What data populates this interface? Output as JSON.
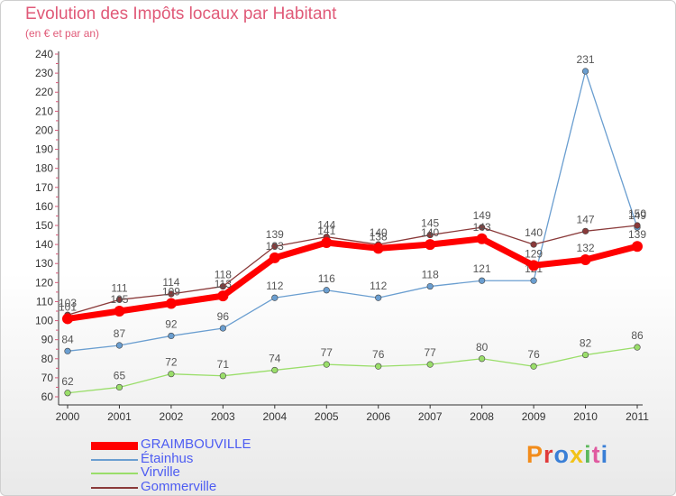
{
  "header": {
    "title": "Evolution des Impôts locaux par Habitant",
    "subtitle": "(en € et par an)"
  },
  "logo": {
    "text": "Proxiti",
    "colors": [
      "#f28c1b",
      "#e03a3a",
      "#3a7fd6",
      "#f2c318",
      "#5cb85c",
      "#e05aa0",
      "#3a7fd6"
    ]
  },
  "chart_data": {
    "type": "line",
    "categories": [
      "2000",
      "2001",
      "2002",
      "2003",
      "2004",
      "2005",
      "2006",
      "2007",
      "2008",
      "2009",
      "2010",
      "2011"
    ],
    "ylim": [
      60,
      240
    ],
    "yticks": [
      60,
      70,
      80,
      90,
      100,
      110,
      120,
      130,
      140,
      150,
      160,
      170,
      180,
      190,
      200,
      210,
      220,
      230,
      240
    ],
    "grid": false,
    "legend_position": "bottom-left",
    "series": [
      {
        "name": "GRAIMBOUVILLE",
        "values": [
          101,
          105,
          109,
          113,
          133,
          141,
          138,
          140,
          143,
          129,
          132,
          139
        ],
        "color": "#ff0000",
        "style": "thick"
      },
      {
        "name": "Étainhus",
        "values": [
          84,
          87,
          92,
          96,
          112,
          116,
          112,
          118,
          121,
          121,
          231,
          149
        ],
        "color": "#6a9ed0",
        "style": "thin"
      },
      {
        "name": "Virville",
        "values": [
          62,
          65,
          72,
          71,
          74,
          77,
          76,
          77,
          80,
          76,
          82,
          86
        ],
        "color": "#9ade6a",
        "style": "thin"
      },
      {
        "name": "Gommerville",
        "values": [
          103,
          111,
          114,
          118,
          139,
          144,
          140,
          145,
          149,
          140,
          147,
          150
        ],
        "color": "#8a3a3a",
        "style": "thin"
      }
    ]
  }
}
